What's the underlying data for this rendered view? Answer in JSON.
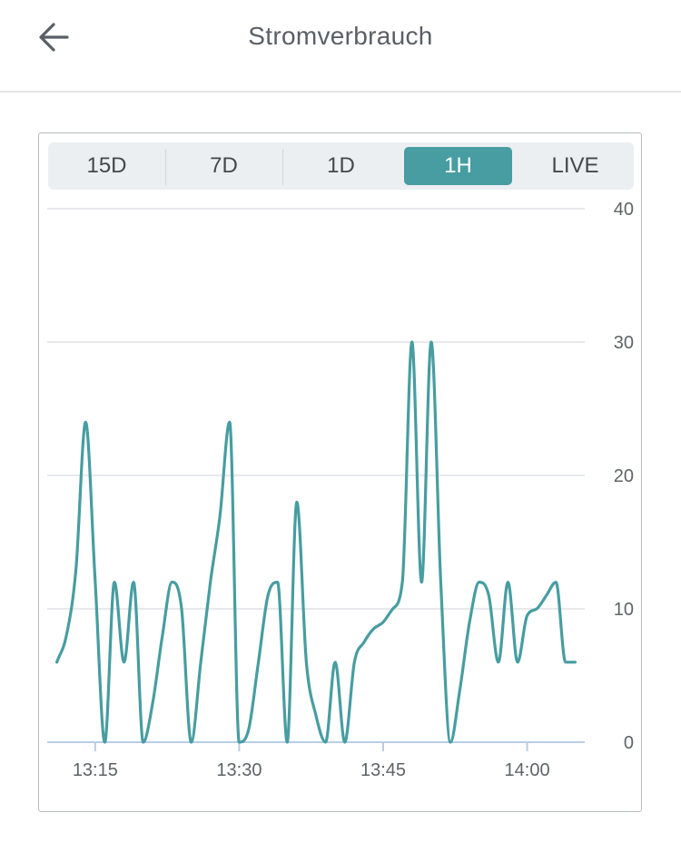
{
  "header": {
    "title": "Stromverbrauch",
    "back_icon": "arrow-left-icon"
  },
  "tabs": [
    {
      "label": "15D",
      "active": false
    },
    {
      "label": "7D",
      "active": false
    },
    {
      "label": "1D",
      "active": false
    },
    {
      "label": "1H",
      "active": true
    },
    {
      "label": "LIVE",
      "active": false
    }
  ],
  "colors": {
    "accent": "#479da1",
    "line": "#479da1",
    "grid": "#dfe2e5",
    "axis": "#b9cde3"
  },
  "chart_data": {
    "type": "line",
    "title": "",
    "xlabel": "",
    "ylabel": "",
    "ylim": [
      0,
      40
    ],
    "xlim": [
      "13:10",
      "14:06"
    ],
    "x_ticks": [
      "13:15",
      "13:30",
      "13:45",
      "14:00"
    ],
    "y_ticks": [
      "0",
      "10",
      "20",
      "30",
      "40"
    ],
    "grid": true,
    "y_axis_position": "right",
    "series": [
      {
        "x": [
          "13:11",
          "13:12",
          "13:13",
          "13:14",
          "13:15",
          "13:16",
          "13:17",
          "13:18",
          "13:19",
          "13:20",
          "13:21",
          "13:22",
          "13:23",
          "13:24",
          "13:25",
          "13:26",
          "13:27",
          "13:28",
          "13:29",
          "13:30",
          "13:31",
          "13:32",
          "13:33",
          "13:34",
          "13:35",
          "13:36",
          "13:37",
          "13:38",
          "13:39",
          "13:40",
          "13:41",
          "13:42",
          "13:43",
          "13:44",
          "13:45",
          "13:46",
          "13:47",
          "13:48",
          "13:49",
          "13:50",
          "13:51",
          "13:52",
          "13:53",
          "13:54",
          "13:55",
          "13:56",
          "13:57",
          "13:58",
          "13:59",
          "14:00",
          "14:01",
          "14:02",
          "14:03",
          "14:04",
          "14:05"
        ],
        "values": [
          6,
          8,
          13,
          24,
          12,
          0,
          12,
          6,
          12,
          0,
          3,
          8,
          12,
          10,
          0,
          6,
          12,
          17,
          24,
          0,
          1,
          6,
          11,
          12,
          0,
          18,
          6,
          2,
          0,
          6,
          0,
          6,
          7.5,
          8.5,
          9,
          10,
          12,
          30,
          12,
          30,
          12,
          0,
          4,
          9,
          12,
          11,
          6,
          12,
          6,
          9.5,
          10,
          11,
          12,
          6,
          6
        ]
      }
    ]
  }
}
